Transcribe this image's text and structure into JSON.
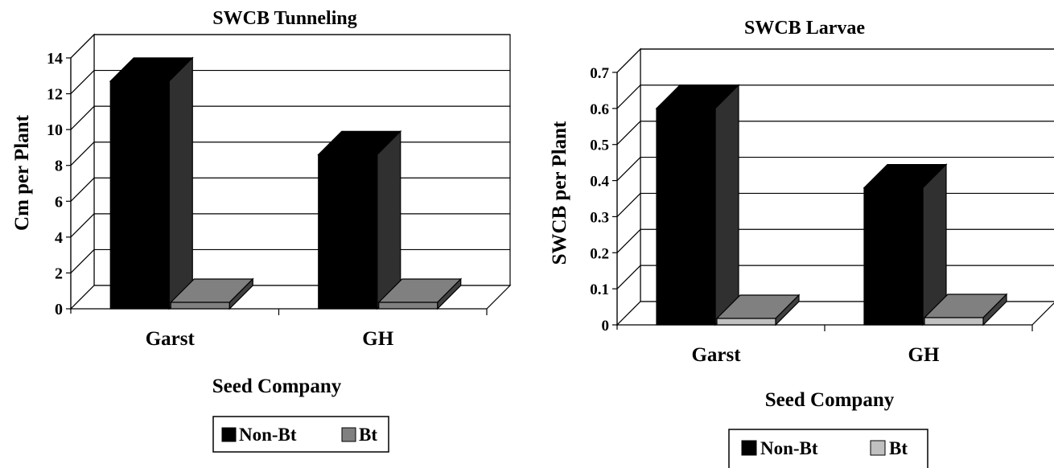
{
  "colors": {
    "non_bt": "#000000",
    "bt_left": "#808080",
    "bt_right": "#c0c0c0",
    "grid": "#000000",
    "background": "#ffffff"
  },
  "chart_data": [
    {
      "type": "bar",
      "title": "SWCB Tunneling",
      "xlabel": "Seed Company",
      "ylabel": "Cm  per Plant",
      "categories": [
        "Garst",
        "GH"
      ],
      "series": [
        {
          "name": "Non-Bt",
          "values": [
            12.7,
            8.6
          ]
        },
        {
          "name": "Bt",
          "values": [
            0.1,
            0.1
          ]
        }
      ],
      "ylim": [
        0,
        14
      ],
      "yticks": [
        "0",
        "2",
        "4",
        "6",
        "8",
        "10",
        "12",
        "14"
      ],
      "grid": true,
      "legend": "bottom"
    },
    {
      "type": "bar",
      "title": "SWCB Larvae",
      "xlabel": "Seed Company",
      "ylabel": "SWCB per Plant",
      "categories": [
        "Garst",
        "GH"
      ],
      "series": [
        {
          "name": "Non-Bt",
          "values": [
            0.6,
            0.38
          ]
        },
        {
          "name": "Bt",
          "values": [
            0.0,
            0.02
          ]
        }
      ],
      "ylim": [
        0,
        0.7
      ],
      "yticks": [
        "0",
        "0.1",
        "0.2",
        "0.3",
        "0.4",
        "0.5",
        "0.6",
        "0.7"
      ],
      "grid": true,
      "legend": "bottom"
    }
  ]
}
